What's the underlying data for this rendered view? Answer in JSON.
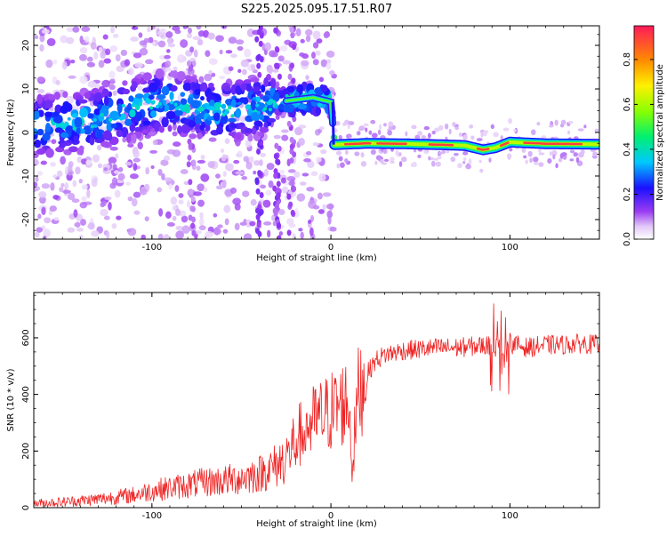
{
  "title": "S225.2025.095.17.51.R07",
  "chart_data": [
    {
      "type": "heatmap",
      "xlabel": "Height of straight line (km)",
      "ylabel": "Frequency (Hz)",
      "xlim": [
        -166,
        150
      ],
      "ylim": [
        -24.5,
        24.5
      ],
      "xticks": [
        -100,
        0,
        100
      ],
      "yticks": [
        -20,
        -10,
        0,
        10,
        20
      ],
      "colorbar": {
        "label": "Normalized spectral amplitude",
        "range": [
          0,
          0.95
        ],
        "ticks": [
          0.0,
          0.2,
          0.4,
          0.6,
          0.8
        ]
      },
      "ridge": [
        {
          "x": -166,
          "y": 1.5
        },
        {
          "x": -150,
          "y": 2
        },
        {
          "x": -130,
          "y": 3
        },
        {
          "x": -110,
          "y": 5.5
        },
        {
          "x": -95,
          "y": 7
        },
        {
          "x": -80,
          "y": 6
        },
        {
          "x": -60,
          "y": 5
        },
        {
          "x": -40,
          "y": 6
        },
        {
          "x": -30,
          "y": 7
        },
        {
          "x": -20,
          "y": 7.5
        },
        {
          "x": -10,
          "y": 8
        },
        {
          "x": 0,
          "y": 7
        },
        {
          "x": 2,
          "y": -2.8
        },
        {
          "x": 20,
          "y": -2.5
        },
        {
          "x": 40,
          "y": -2.6
        },
        {
          "x": 60,
          "y": -2.8
        },
        {
          "x": 75,
          "y": -3
        },
        {
          "x": 85,
          "y": -4
        },
        {
          "x": 92,
          "y": -3.5
        },
        {
          "x": 100,
          "y": -2.2
        },
        {
          "x": 120,
          "y": -2.6
        },
        {
          "x": 150,
          "y": -2.7
        }
      ]
    },
    {
      "type": "line",
      "xlabel": "Height of straight line (km)",
      "ylabel": "SNR (10 * v/v)",
      "xlim": [
        -166,
        150
      ],
      "ylim": [
        0,
        760
      ],
      "xticks": [
        -100,
        0,
        100
      ],
      "yticks": [
        0,
        200,
        400,
        600
      ],
      "series": [
        {
          "color": "#ee2222",
          "x": [
            -166,
            -150,
            -130,
            -110,
            -100,
            -90,
            -80,
            -70,
            -60,
            -50,
            -40,
            -30,
            -25,
            -20,
            -15,
            -10,
            -5,
            0,
            5,
            10,
            12,
            15,
            20,
            25,
            30,
            40,
            50,
            60,
            70,
            80,
            90,
            95,
            97,
            100,
            110,
            120,
            130,
            140,
            150
          ],
          "y": [
            15,
            20,
            30,
            45,
            60,
            70,
            80,
            90,
            95,
            105,
            120,
            150,
            180,
            230,
            280,
            300,
            320,
            340,
            360,
            380,
            140,
            400,
            470,
            520,
            540,
            555,
            560,
            565,
            565,
            570,
            575,
            560,
            520,
            580,
            565,
            575,
            575,
            580,
            575
          ]
        }
      ]
    }
  ]
}
